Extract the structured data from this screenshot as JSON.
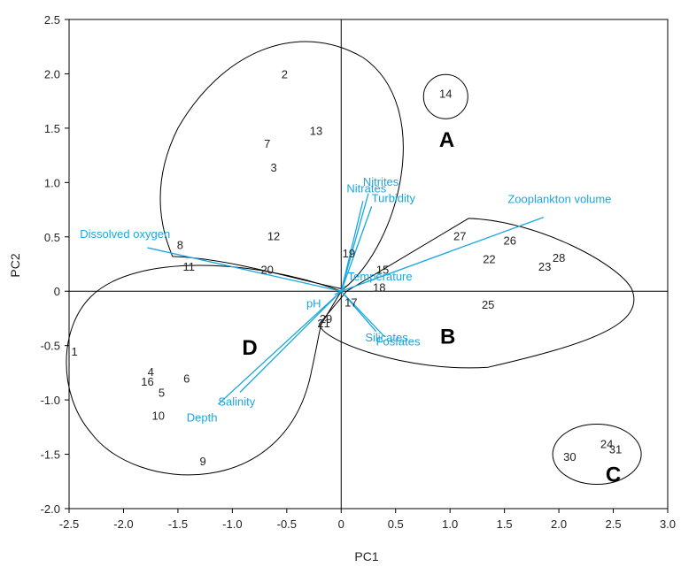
{
  "chart_data": {
    "type": "scatter",
    "subtype": "pca-biplot",
    "title": "",
    "xlabel": "PC1",
    "ylabel": "PC2",
    "xlim": [
      -2.5,
      3.0
    ],
    "ylim": [
      -2.0,
      2.5
    ],
    "xticks": [
      "-2.5",
      "-2.0",
      "-1.5",
      "-1.0",
      "-0.5",
      "0",
      "0.5",
      "1.0",
      "1.5",
      "2.0",
      "2.5",
      "3.0"
    ],
    "yticks": [
      "2.5",
      "2.0",
      "1.5",
      "1.0",
      "0.5",
      "0",
      "-0.5",
      "-1.0",
      "-1.5",
      "-2.0"
    ],
    "grid": false,
    "vector_color": "#1aa7e0",
    "point_color": "#222222",
    "points": [
      {
        "label": "1",
        "x": -2.45,
        "y": -0.55
      },
      {
        "label": "2",
        "x": -0.52,
        "y": 2.0
      },
      {
        "label": "3",
        "x": -0.62,
        "y": 1.14
      },
      {
        "label": "4",
        "x": -1.75,
        "y": -0.74
      },
      {
        "label": "5",
        "x": -1.65,
        "y": -0.93
      },
      {
        "label": "6",
        "x": -1.42,
        "y": -0.8
      },
      {
        "label": "7",
        "x": -0.68,
        "y": 1.36
      },
      {
        "label": "8",
        "x": -1.48,
        "y": 0.43
      },
      {
        "label": "9",
        "x": -1.27,
        "y": -1.56
      },
      {
        "label": "10",
        "x": -1.68,
        "y": -1.14
      },
      {
        "label": "11",
        "x": -1.4,
        "y": 0.23
      },
      {
        "label": "12",
        "x": -0.62,
        "y": 0.51
      },
      {
        "label": "13",
        "x": -0.23,
        "y": 1.48
      },
      {
        "label": "14",
        "x": 0.96,
        "y": 1.82
      },
      {
        "label": "15",
        "x": 0.38,
        "y": 0.2
      },
      {
        "label": "16",
        "x": -1.78,
        "y": -0.83
      },
      {
        "label": "17",
        "x": 0.09,
        "y": -0.1
      },
      {
        "label": "18",
        "x": 0.35,
        "y": 0.04
      },
      {
        "label": "19",
        "x": 0.07,
        "y": 0.35
      },
      {
        "label": "20",
        "x": -0.68,
        "y": 0.2
      },
      {
        "label": "21",
        "x": -0.16,
        "y": -0.29
      },
      {
        "label": "22",
        "x": 1.36,
        "y": 0.3
      },
      {
        "label": "23",
        "x": 1.87,
        "y": 0.23
      },
      {
        "label": "24",
        "x": 2.44,
        "y": -1.4
      },
      {
        "label": "25",
        "x": 1.35,
        "y": -0.12
      },
      {
        "label": "26",
        "x": 1.55,
        "y": 0.47
      },
      {
        "label": "27",
        "x": 1.09,
        "y": 0.51
      },
      {
        "label": "28",
        "x": 2.0,
        "y": 0.31
      },
      {
        "label": "29",
        "x": -0.14,
        "y": -0.25
      },
      {
        "label": "30",
        "x": 2.1,
        "y": -1.52
      },
      {
        "label": "31",
        "x": 2.52,
        "y": -1.45
      }
    ],
    "vectors": [
      {
        "name": "Dissolved oxygen",
        "x": -1.78,
        "y": 0.4
      },
      {
        "name": "Zooplankton volume",
        "x": 1.86,
        "y": 0.68
      },
      {
        "name": "Nitrites",
        "x": 0.25,
        "y": 0.9
      },
      {
        "name": "Nitrates",
        "x": 0.2,
        "y": 0.83
      },
      {
        "name": "Turbidity",
        "x": 0.28,
        "y": 0.78
      },
      {
        "name": "Temperature",
        "x": 0.04,
        "y": 0.05
      },
      {
        "name": "pH",
        "x": -0.06,
        "y": -0.03
      },
      {
        "name": "Silicates",
        "x": 0.32,
        "y": -0.37
      },
      {
        "name": "Fosfates",
        "x": 0.4,
        "y": -0.42
      },
      {
        "name": "Salinity",
        "x": -0.93,
        "y": -0.93
      },
      {
        "name": "Depth",
        "x": -1.13,
        "y": -1.04
      }
    ],
    "groups": [
      {
        "label": "A",
        "x": 0.97,
        "y": 1.4
      },
      {
        "label": "B",
        "x": 0.98,
        "y": -0.41
      },
      {
        "label": "C",
        "x": 2.5,
        "y": -1.68
      },
      {
        "label": "D",
        "x": -0.84,
        "y": -0.51
      }
    ]
  }
}
